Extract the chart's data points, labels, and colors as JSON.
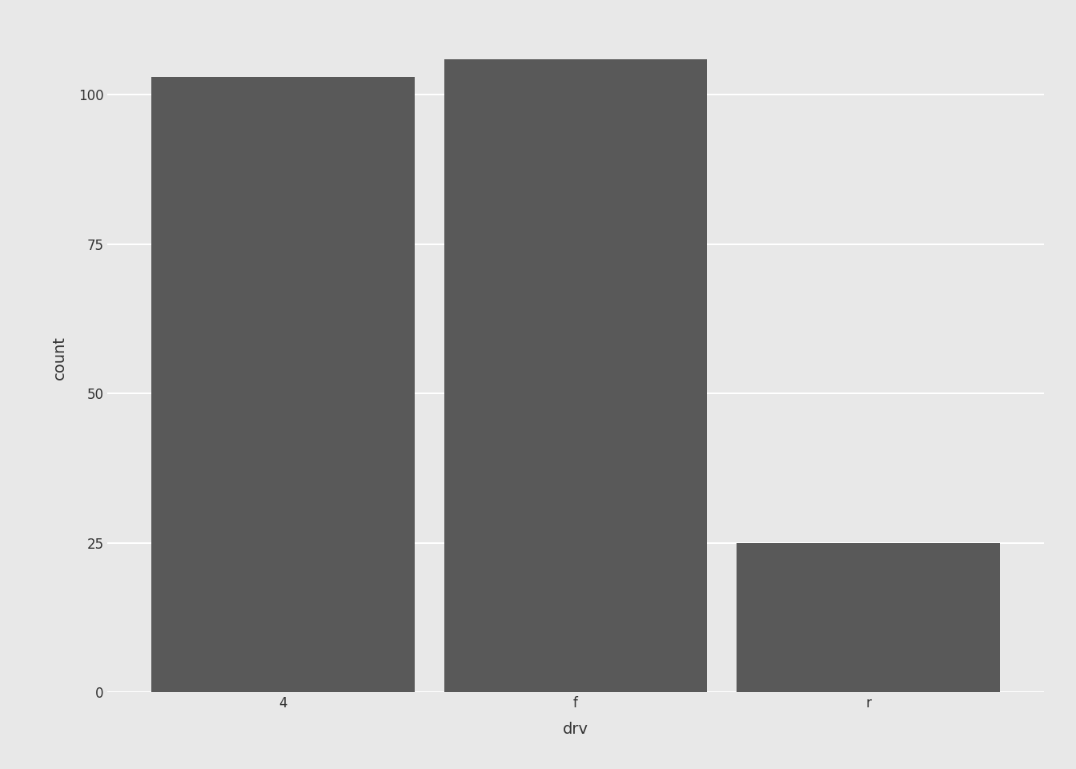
{
  "categories": [
    "4",
    "f",
    "r"
  ],
  "values": [
    103,
    106,
    25
  ],
  "bar_color": "#595959",
  "outer_background": "#E8E8E8",
  "panel_background": "#E8E8E8",
  "grid_color": "#FFFFFF",
  "xlabel": "drv",
  "ylabel": "count",
  "ylim": [
    0,
    112
  ],
  "yticks": [
    0,
    25,
    50,
    75,
    100
  ],
  "xlabel_fontsize": 14,
  "ylabel_fontsize": 14,
  "tick_fontsize": 12,
  "bar_width": 0.9,
  "figsize": [
    13.44,
    9.6
  ],
  "dpi": 100
}
